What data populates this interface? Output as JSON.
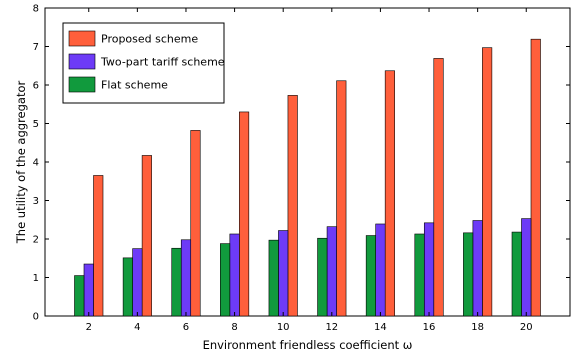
{
  "chart_data": {
    "type": "bar",
    "title": "",
    "xlabel": "Environment friendless coefficient ω",
    "ylabel": "The utility of the aggregator",
    "categories": [
      "2",
      "4",
      "6",
      "8",
      "10",
      "12",
      "14",
      "16",
      "18",
      "20"
    ],
    "ylim": [
      0,
      8
    ],
    "yticks": [
      0,
      1,
      2,
      3,
      4,
      5,
      6,
      7,
      8
    ],
    "grid": false,
    "legend_position": "top-left",
    "series": [
      {
        "name": "Proposed scheme",
        "color": "#ff5f3b",
        "values": [
          3.65,
          4.17,
          4.82,
          5.3,
          5.73,
          6.11,
          6.37,
          6.69,
          6.97,
          7.19
        ]
      },
      {
        "name": "Two-part tariff scheme",
        "color": "#6d3bf7",
        "values": [
          1.35,
          1.75,
          1.98,
          2.13,
          2.22,
          2.32,
          2.39,
          2.42,
          2.48,
          2.53
        ]
      },
      {
        "name": "Flat scheme",
        "color": "#119a3d",
        "values": [
          1.05,
          1.51,
          1.76,
          1.88,
          1.97,
          2.02,
          2.09,
          2.13,
          2.16,
          2.18
        ]
      }
    ]
  }
}
